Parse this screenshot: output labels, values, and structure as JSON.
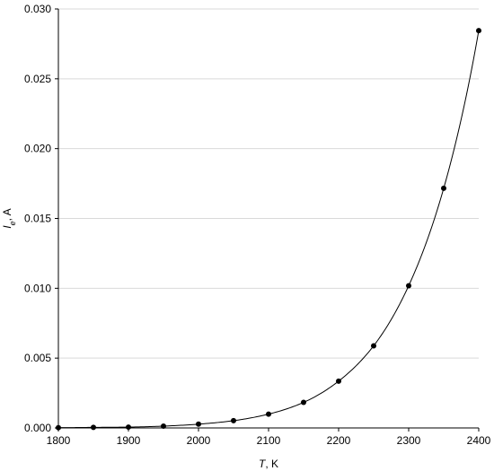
{
  "chart_data": {
    "type": "scatter",
    "title": "",
    "xlabel": "T, K",
    "ylabel": "Ie, A",
    "xlabel_parts": {
      "var": "T",
      "rest": ", K"
    },
    "ylabel_parts": {
      "var": "I",
      "sub": "e",
      "rest": ", A"
    },
    "xlim": [
      1800,
      2400
    ],
    "ylim": [
      0,
      0.03
    ],
    "x_ticks": [
      "1800",
      "1900",
      "2000",
      "2100",
      "2200",
      "2300",
      "2400"
    ],
    "y_ticks": [
      "0.000",
      "0.005",
      "0.010",
      "0.015",
      "0.020",
      "0.025",
      "0.030"
    ],
    "grid": "horizontal",
    "fit_line": "smooth curve through points",
    "series": [
      {
        "x": [
          1800,
          1850,
          1900,
          1950,
          2000,
          2050,
          2100,
          2150,
          2200,
          2250,
          2300,
          2350,
          2400
        ],
        "y": [
          2e-05,
          4e-05,
          6e-05,
          0.00013,
          0.00027,
          0.00052,
          0.00099,
          0.00183,
          0.00335,
          0.00588,
          0.01018,
          0.01716,
          0.02845
        ]
      }
    ]
  }
}
